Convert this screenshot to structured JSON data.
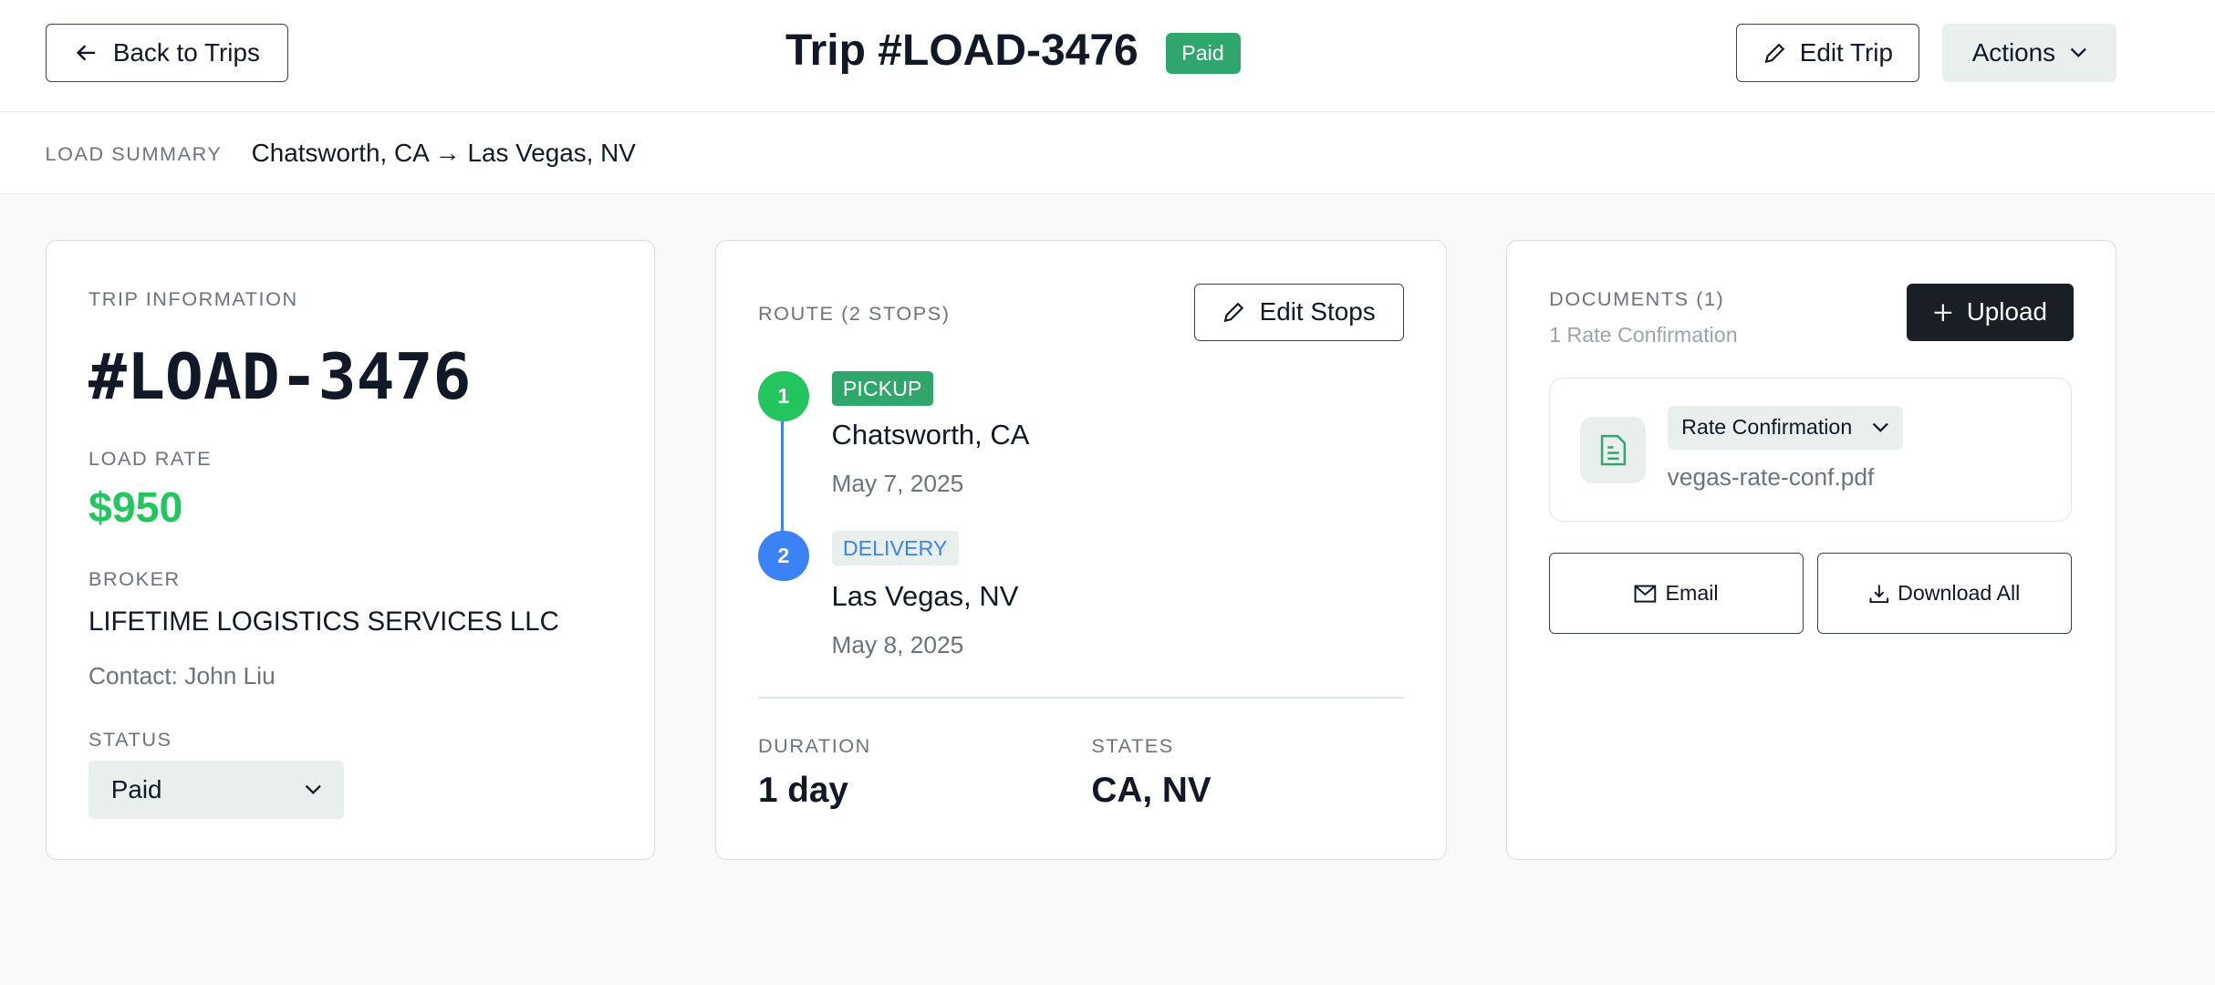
{
  "header": {
    "back_label": "Back to Trips",
    "title": "Trip #LOAD-3476",
    "status_badge": "Paid",
    "edit_label": "Edit Trip",
    "actions_label": "Actions"
  },
  "summary": {
    "label": "LOAD SUMMARY",
    "route": "Chatsworth, CA → Las Vegas, NV"
  },
  "trip_info": {
    "section_title": "TRIP INFORMATION",
    "load_id": "#LOAD-3476",
    "rate_label": "LOAD RATE",
    "rate": "$950",
    "broker_label": "BROKER",
    "broker": "LIFETIME LOGISTICS SERVICES LLC",
    "contact": "Contact: John Liu",
    "status_label": "STATUS",
    "status_value": "Paid"
  },
  "route": {
    "section_title": "ROUTE (2 STOPS)",
    "edit_label": "Edit Stops",
    "stops": [
      {
        "num": "1",
        "type": "PICKUP",
        "city": "Chatsworth, CA",
        "date": "May 7, 2025"
      },
      {
        "num": "2",
        "type": "DELIVERY",
        "city": "Las Vegas, NV",
        "date": "May 8, 2025"
      }
    ],
    "duration_label": "DURATION",
    "duration": "1 day",
    "states_label": "STATES",
    "states": "CA, NV"
  },
  "documents": {
    "section_title": "DOCUMENTS (1)",
    "subtitle": "1 Rate Confirmation",
    "upload_label": "Upload",
    "doc_type": "Rate Confirmation",
    "file_name": "vegas-rate-conf.pdf",
    "email_label": "Email",
    "download_label": "Download All"
  },
  "colors": {
    "paid": "#2fa66b",
    "green": "#22c55e",
    "blue": "#3b82f6",
    "dark": "#1a1e25"
  }
}
